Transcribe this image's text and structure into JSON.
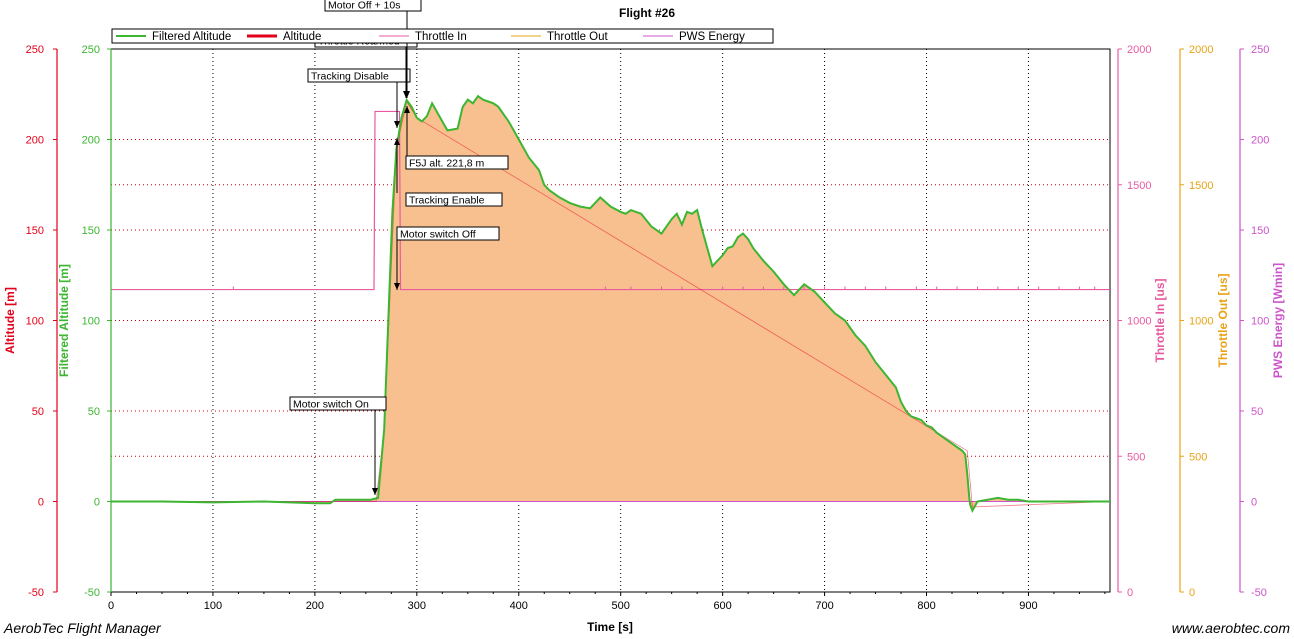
{
  "footer": {
    "app_name": "AerobTec Flight Manager",
    "website": "www.aerobtec.com"
  },
  "colors": {
    "altitude": "#e2001a",
    "filtered_altitude": "#3cb531",
    "throttle_in": "#e85aa0",
    "throttle_out": "#e8a317",
    "pws_energy": "#cc55cc",
    "fill": "#f9c08f",
    "grid_red": "#cc0000"
  },
  "chart_data": {
    "type": "area",
    "title": "Flight #26",
    "xlabel": "Time [s]",
    "xlim": [
      0,
      980
    ],
    "xticks": [
      0,
      100,
      200,
      300,
      400,
      500,
      600,
      700,
      800,
      900
    ],
    "axes": [
      {
        "label": "Altitude [m]",
        "side": "left",
        "range": [
          -50,
          250
        ],
        "ticks": [
          -50,
          0,
          50,
          100,
          150,
          200,
          250
        ],
        "color": "#e2001a"
      },
      {
        "label": "Filtered Altitude [m]",
        "side": "left",
        "range": [
          -50,
          250
        ],
        "ticks": [
          -50,
          0,
          50,
          100,
          150,
          200,
          250
        ],
        "color": "#3cb531"
      },
      {
        "label": "Throttle In [us]",
        "side": "right",
        "range": [
          0,
          2000
        ],
        "ticks": [
          0,
          500,
          1000,
          1500,
          2000
        ],
        "color": "#e85aa0"
      },
      {
        "label": "Throttle Out [us]",
        "side": "right",
        "range": [
          0,
          2000
        ],
        "ticks": [
          0,
          500,
          1000,
          1500,
          2000
        ],
        "color": "#e8a317"
      },
      {
        "label": "PWS Energy [Wmin]",
        "side": "right",
        "range": [
          -50,
          250
        ],
        "ticks": [
          -50,
          0,
          50,
          100,
          150,
          200,
          250
        ],
        "color": "#cc55cc"
      }
    ],
    "legend": [
      "Filtered Altitude",
      "Altitude",
      "Throttle In",
      "Throttle Out",
      "PWS Energy"
    ],
    "legend_position": "top-left",
    "grid": true,
    "series": [
      {
        "name": "Filtered Altitude",
        "x": [
          0,
          50,
          100,
          150,
          200,
          215,
          220,
          245,
          255,
          262,
          268,
          272,
          276,
          280,
          285,
          290,
          295,
          300,
          305,
          310,
          315,
          320,
          330,
          340,
          345,
          350,
          355,
          360,
          365,
          370,
          375,
          380,
          385,
          390,
          395,
          400,
          410,
          420,
          425,
          430,
          440,
          450,
          460,
          470,
          480,
          490,
          500,
          505,
          510,
          520,
          530,
          540,
          550,
          555,
          560,
          565,
          570,
          575,
          580,
          585,
          590,
          600,
          605,
          610,
          615,
          620,
          625,
          630,
          640,
          650,
          660,
          665,
          670,
          675,
          680,
          685,
          690,
          700,
          705,
          710,
          720,
          730,
          740,
          750,
          760,
          770,
          775,
          780,
          785,
          790,
          795,
          800,
          805,
          810,
          815,
          820,
          825,
          830,
          835,
          838,
          840,
          842,
          843,
          845,
          850,
          860,
          870,
          880,
          890,
          900,
          920,
          950,
          980
        ],
        "values": [
          0,
          0,
          -0.5,
          0,
          -1,
          -1,
          1,
          1,
          1,
          2,
          40,
          100,
          160,
          195,
          212,
          221.8,
          218,
          212,
          210,
          213,
          220,
          215,
          205,
          206,
          218,
          222,
          220,
          224,
          222,
          221,
          220,
          218,
          214,
          210,
          205,
          200,
          190,
          183,
          175,
          172,
          168,
          165,
          163,
          162,
          168,
          163,
          160,
          159,
          161,
          159,
          152,
          148,
          156,
          159,
          153,
          160,
          159,
          161,
          150,
          140,
          130,
          136,
          140,
          141,
          146,
          148,
          145,
          140,
          133,
          127,
          120,
          117,
          114,
          117,
          120,
          118,
          116,
          110,
          107,
          104,
          100,
          92,
          86,
          77,
          70,
          63,
          55,
          50,
          47,
          46,
          45,
          42,
          41,
          38,
          36,
          34,
          32,
          30,
          28,
          26,
          15,
          2,
          -2,
          -5,
          0,
          1,
          2,
          1,
          1,
          0,
          0,
          0,
          0
        ]
      },
      {
        "name": "Altitude",
        "x": [
          0,
          260,
          268,
          280,
          290,
          300,
          840,
          845,
          980
        ],
        "values": [
          0,
          0,
          40,
          195,
          221,
          212,
          28,
          -3,
          0
        ]
      },
      {
        "name": "Throttle In",
        "x": [
          0,
          258,
          259,
          283,
          284,
          980
        ],
        "values": [
          1114,
          1114,
          1770,
          1770,
          1114,
          1114
        ]
      },
      {
        "name": "PWS Energy",
        "x": [
          0,
          980
        ],
        "values": [
          0,
          0
        ]
      }
    ],
    "annotations": [
      {
        "text": "Motor switch On",
        "x": 262,
        "y": 1
      },
      {
        "text": "Motor switch Off",
        "x": 283,
        "y": 199
      },
      {
        "text": "Tracking Disable",
        "x": 281,
        "y": 205
      },
      {
        "text": "Tracking Enable",
        "x": 286,
        "y": 197
      },
      {
        "text": "F5J alt. 221,8 m",
        "x": 290,
        "y": 221.8
      },
      {
        "text": "Throttle Rearmed",
        "x": 291,
        "y": 222
      },
      {
        "text": "Motor Off + 10s",
        "x": 293,
        "y": 221
      }
    ]
  }
}
